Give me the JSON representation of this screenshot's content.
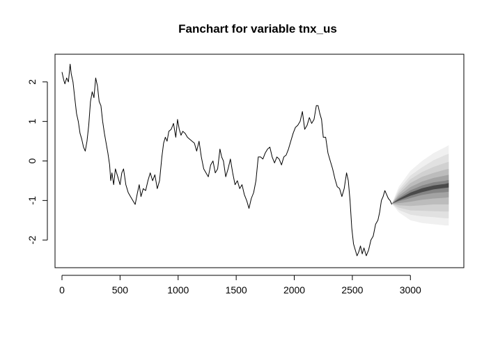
{
  "chart_data": {
    "type": "line",
    "title": "Fanchart for variable tnx_us",
    "xlabel": "",
    "ylabel": "",
    "xlim": [
      -60,
      3460
    ],
    "ylim": [
      -2.7,
      2.7
    ],
    "x_ticks": [
      0,
      500,
      1000,
      1500,
      2000,
      2500,
      3000
    ],
    "y_ticks": [
      -2,
      -1,
      0,
      1,
      2
    ],
    "grid": false,
    "legend": "none",
    "series": [
      {
        "type": "line",
        "color": "#000000",
        "points": [
          [
            0,
            2.25
          ],
          [
            15,
            2.05
          ],
          [
            25,
            1.95
          ],
          [
            40,
            2.1
          ],
          [
            55,
            2.0
          ],
          [
            70,
            2.45
          ],
          [
            80,
            2.2
          ],
          [
            95,
            2.0
          ],
          [
            110,
            1.6
          ],
          [
            125,
            1.2
          ],
          [
            140,
            1.0
          ],
          [
            155,
            0.7
          ],
          [
            170,
            0.55
          ],
          [
            185,
            0.35
          ],
          [
            200,
            0.25
          ],
          [
            215,
            0.5
          ],
          [
            230,
            0.9
          ],
          [
            245,
            1.5
          ],
          [
            260,
            1.75
          ],
          [
            275,
            1.6
          ],
          [
            290,
            2.1
          ],
          [
            305,
            1.9
          ],
          [
            320,
            1.5
          ],
          [
            335,
            1.4
          ],
          [
            350,
            1.0
          ],
          [
            365,
            0.7
          ],
          [
            380,
            0.45
          ],
          [
            395,
            0.2
          ],
          [
            410,
            -0.1
          ],
          [
            420,
            -0.5
          ],
          [
            430,
            -0.3
          ],
          [
            445,
            -0.6
          ],
          [
            460,
            -0.2
          ],
          [
            480,
            -0.4
          ],
          [
            500,
            -0.6
          ],
          [
            515,
            -0.3
          ],
          [
            530,
            -0.2
          ],
          [
            550,
            -0.6
          ],
          [
            570,
            -0.8
          ],
          [
            590,
            -0.9
          ],
          [
            610,
            -1.0
          ],
          [
            630,
            -1.1
          ],
          [
            650,
            -0.8
          ],
          [
            665,
            -0.6
          ],
          [
            680,
            -0.9
          ],
          [
            700,
            -0.7
          ],
          [
            720,
            -0.75
          ],
          [
            740,
            -0.5
          ],
          [
            760,
            -0.3
          ],
          [
            780,
            -0.5
          ],
          [
            800,
            -0.35
          ],
          [
            820,
            -0.7
          ],
          [
            840,
            -0.5
          ],
          [
            860,
            0.1
          ],
          [
            875,
            0.45
          ],
          [
            890,
            0.6
          ],
          [
            905,
            0.5
          ],
          [
            920,
            0.75
          ],
          [
            940,
            0.8
          ],
          [
            960,
            0.95
          ],
          [
            980,
            0.6
          ],
          [
            995,
            1.05
          ],
          [
            1010,
            0.8
          ],
          [
            1025,
            0.65
          ],
          [
            1040,
            0.75
          ],
          [
            1060,
            0.7
          ],
          [
            1080,
            0.6
          ],
          [
            1100,
            0.55
          ],
          [
            1120,
            0.5
          ],
          [
            1140,
            0.45
          ],
          [
            1160,
            0.25
          ],
          [
            1180,
            0.5
          ],
          [
            1200,
            0.1
          ],
          [
            1220,
            -0.2
          ],
          [
            1240,
            -0.3
          ],
          [
            1260,
            -0.4
          ],
          [
            1280,
            -0.1
          ],
          [
            1300,
            0.0
          ],
          [
            1320,
            -0.3
          ],
          [
            1340,
            -0.2
          ],
          [
            1360,
            0.3
          ],
          [
            1375,
            0.1
          ],
          [
            1390,
            0.0
          ],
          [
            1410,
            -0.4
          ],
          [
            1430,
            -0.2
          ],
          [
            1450,
            0.05
          ],
          [
            1470,
            -0.3
          ],
          [
            1490,
            -0.6
          ],
          [
            1510,
            -0.5
          ],
          [
            1530,
            -0.7
          ],
          [
            1550,
            -0.6
          ],
          [
            1570,
            -0.85
          ],
          [
            1590,
            -1.0
          ],
          [
            1610,
            -1.2
          ],
          [
            1630,
            -0.95
          ],
          [
            1650,
            -0.8
          ],
          [
            1670,
            -0.5
          ],
          [
            1690,
            0.1
          ],
          [
            1710,
            0.1
          ],
          [
            1730,
            0.05
          ],
          [
            1750,
            0.2
          ],
          [
            1770,
            0.3
          ],
          [
            1790,
            0.35
          ],
          [
            1810,
            0.1
          ],
          [
            1830,
            -0.05
          ],
          [
            1850,
            0.1
          ],
          [
            1870,
            0.05
          ],
          [
            1890,
            -0.1
          ],
          [
            1910,
            0.1
          ],
          [
            1930,
            0.15
          ],
          [
            1950,
            0.3
          ],
          [
            1970,
            0.5
          ],
          [
            1990,
            0.7
          ],
          [
            2010,
            0.85
          ],
          [
            2030,
            0.9
          ],
          [
            2050,
            1.0
          ],
          [
            2070,
            1.25
          ],
          [
            2090,
            0.8
          ],
          [
            2110,
            0.9
          ],
          [
            2130,
            1.1
          ],
          [
            2150,
            0.95
          ],
          [
            2170,
            1.05
          ],
          [
            2190,
            1.4
          ],
          [
            2205,
            1.4
          ],
          [
            2220,
            1.2
          ],
          [
            2235,
            1.05
          ],
          [
            2250,
            0.6
          ],
          [
            2270,
            0.6
          ],
          [
            2290,
            0.2
          ],
          [
            2310,
            0.0
          ],
          [
            2330,
            -0.2
          ],
          [
            2350,
            -0.45
          ],
          [
            2370,
            -0.65
          ],
          [
            2390,
            -0.7
          ],
          [
            2410,
            -0.9
          ],
          [
            2430,
            -0.7
          ],
          [
            2450,
            -0.3
          ],
          [
            2465,
            -0.5
          ],
          [
            2480,
            -1.0
          ],
          [
            2495,
            -1.7
          ],
          [
            2510,
            -2.1
          ],
          [
            2525,
            -2.25
          ],
          [
            2540,
            -2.4
          ],
          [
            2555,
            -2.3
          ],
          [
            2570,
            -2.15
          ],
          [
            2585,
            -2.35
          ],
          [
            2600,
            -2.2
          ],
          [
            2620,
            -2.4
          ],
          [
            2640,
            -2.25
          ],
          [
            2660,
            -2.0
          ],
          [
            2680,
            -1.9
          ],
          [
            2700,
            -1.6
          ],
          [
            2720,
            -1.5
          ],
          [
            2735,
            -1.3
          ],
          [
            2750,
            -1.0
          ],
          [
            2765,
            -0.9
          ],
          [
            2780,
            -0.75
          ],
          [
            2795,
            -0.85
          ],
          [
            2810,
            -0.95
          ],
          [
            2825,
            -1.0
          ],
          [
            2840,
            -1.1
          ]
        ]
      }
    ],
    "fan": {
      "x": [
        2840,
        2900,
        3000,
        3100,
        3200,
        3300,
        3330
      ],
      "center": [
        -1.08,
        -0.98,
        -0.84,
        -0.74,
        -0.67,
        -0.63,
        -0.62
      ],
      "bands": [
        {
          "color": "#f0f0f0",
          "upper": [
            -1.08,
            -0.65,
            -0.25,
            0.0,
            0.2,
            0.35,
            0.4
          ],
          "lower": [
            -1.08,
            -1.3,
            -1.5,
            -1.57,
            -1.6,
            -1.63,
            -1.63
          ]
        },
        {
          "color": "#e1e1e1",
          "upper": [
            -1.08,
            -0.72,
            -0.37,
            -0.16,
            0.02,
            0.15,
            0.18
          ],
          "lower": [
            -1.08,
            -1.24,
            -1.36,
            -1.4,
            -1.42,
            -1.45,
            -1.45
          ]
        },
        {
          "color": "#d1d1d1",
          "upper": [
            -1.08,
            -0.78,
            -0.46,
            -0.28,
            -0.15,
            -0.05,
            -0.02
          ],
          "lower": [
            -1.08,
            -1.18,
            -1.25,
            -1.26,
            -1.27,
            -1.28,
            -1.28
          ]
        },
        {
          "color": "#bcbcbc",
          "upper": [
            -1.08,
            -0.83,
            -0.56,
            -0.4,
            -0.3,
            -0.22,
            -0.2
          ],
          "lower": [
            -1.08,
            -1.12,
            -1.14,
            -1.12,
            -1.1,
            -1.1,
            -1.1
          ]
        },
        {
          "color": "#a3a3a3",
          "upper": [
            -1.08,
            -0.88,
            -0.66,
            -0.52,
            -0.43,
            -0.37,
            -0.35
          ],
          "lower": [
            -1.08,
            -1.07,
            -1.03,
            -0.98,
            -0.95,
            -0.93,
            -0.92
          ]
        },
        {
          "color": "#858585",
          "upper": [
            -1.08,
            -0.93,
            -0.74,
            -0.62,
            -0.54,
            -0.5,
            -0.48
          ],
          "lower": [
            -1.08,
            -1.02,
            -0.94,
            -0.86,
            -0.81,
            -0.79,
            -0.78
          ]
        },
        {
          "color": "#4a4a4a",
          "upper": [
            -1.08,
            -0.96,
            -0.8,
            -0.69,
            -0.62,
            -0.58,
            -0.56
          ],
          "lower": [
            -1.08,
            -1.0,
            -0.88,
            -0.79,
            -0.72,
            -0.68,
            -0.67
          ]
        }
      ]
    }
  }
}
